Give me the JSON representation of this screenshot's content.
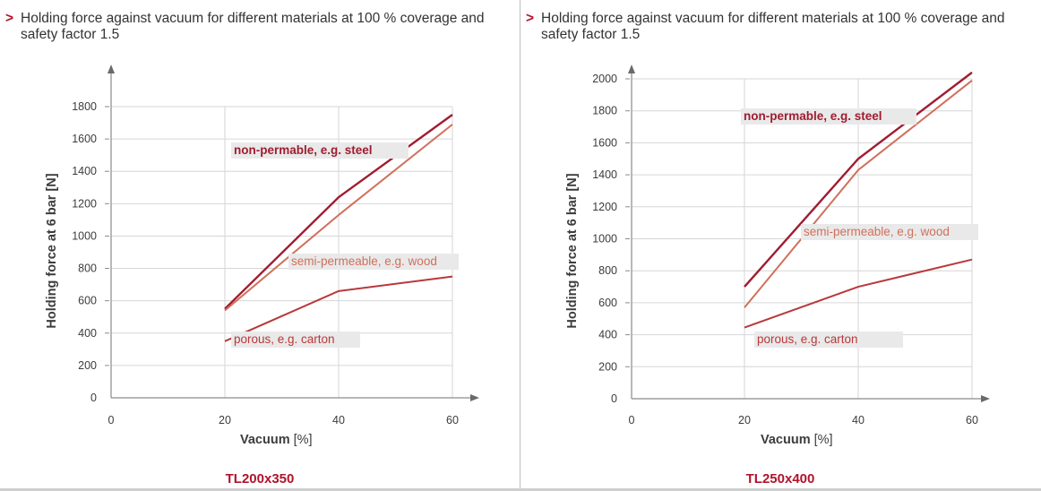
{
  "colors": {
    "accent": "#b0142c",
    "steel": "#a01c30",
    "wood": "#d0705c",
    "carton": "#b9383a",
    "label_bg": "#e9e9e9",
    "grid": "#d6d6d6"
  },
  "panels": [
    {
      "header_arrow": ">",
      "header_text": "Holding force against vacuum for different materials at 100 % coverage and safety factor 1.5",
      "ylabel": "Holding force at 6 bar [N]",
      "xlabel_main": "Vacuum",
      "xlabel_unit": "[%]",
      "model": "TL200x350"
    },
    {
      "header_arrow": ">",
      "header_text": "Holding force against vacuum for different materials at 100 % coverage and safety factor 1.5",
      "ylabel": "Holding force at 6 bar [N]",
      "xlabel_main": "Vacuum",
      "xlabel_unit": "[%]",
      "model": "TL250x400"
    }
  ],
  "chart_data": [
    {
      "type": "line",
      "xlabel": "Vacuum [%]",
      "ylabel": "Holding force at 6 bar [N]",
      "x_ticks": [
        0,
        20,
        40,
        60
      ],
      "y_ticks": [
        0,
        200,
        400,
        600,
        800,
        1000,
        1200,
        1400,
        1600,
        1800
      ],
      "xlim": [
        0,
        60
      ],
      "ylim": [
        0,
        1800
      ],
      "grid": true,
      "series": [
        {
          "name": "non-permable, e.g. steel",
          "x": [
            20,
            40,
            60
          ],
          "values": [
            550,
            1240,
            1750
          ]
        },
        {
          "name": "semi-permeable, e.g. wood",
          "x": [
            20,
            40,
            60
          ],
          "values": [
            540,
            1130,
            1690
          ]
        },
        {
          "name": "porous, e.g. carton",
          "x": [
            20,
            40,
            60
          ],
          "values": [
            350,
            660,
            750
          ]
        }
      ],
      "caption": "TL200x350"
    },
    {
      "type": "line",
      "xlabel": "Vacuum [%]",
      "ylabel": "Holding force at 6 bar [N]",
      "x_ticks": [
        0,
        20,
        40,
        60
      ],
      "y_ticks": [
        0,
        200,
        400,
        600,
        800,
        1000,
        1200,
        1400,
        1600,
        1800,
        2000
      ],
      "xlim": [
        0,
        60
      ],
      "ylim": [
        0,
        2000
      ],
      "grid": true,
      "series": [
        {
          "name": "non-permable, e.g. steel",
          "x": [
            20,
            40,
            60
          ],
          "values": [
            700,
            1500,
            2040
          ]
        },
        {
          "name": "semi-permeable, e.g. wood",
          "x": [
            20,
            40,
            60
          ],
          "values": [
            570,
            1430,
            1990
          ]
        },
        {
          "name": "porous, e.g. carton",
          "x": [
            20,
            40,
            60
          ],
          "values": [
            445,
            700,
            870
          ]
        }
      ],
      "caption": "TL250x400"
    }
  ]
}
